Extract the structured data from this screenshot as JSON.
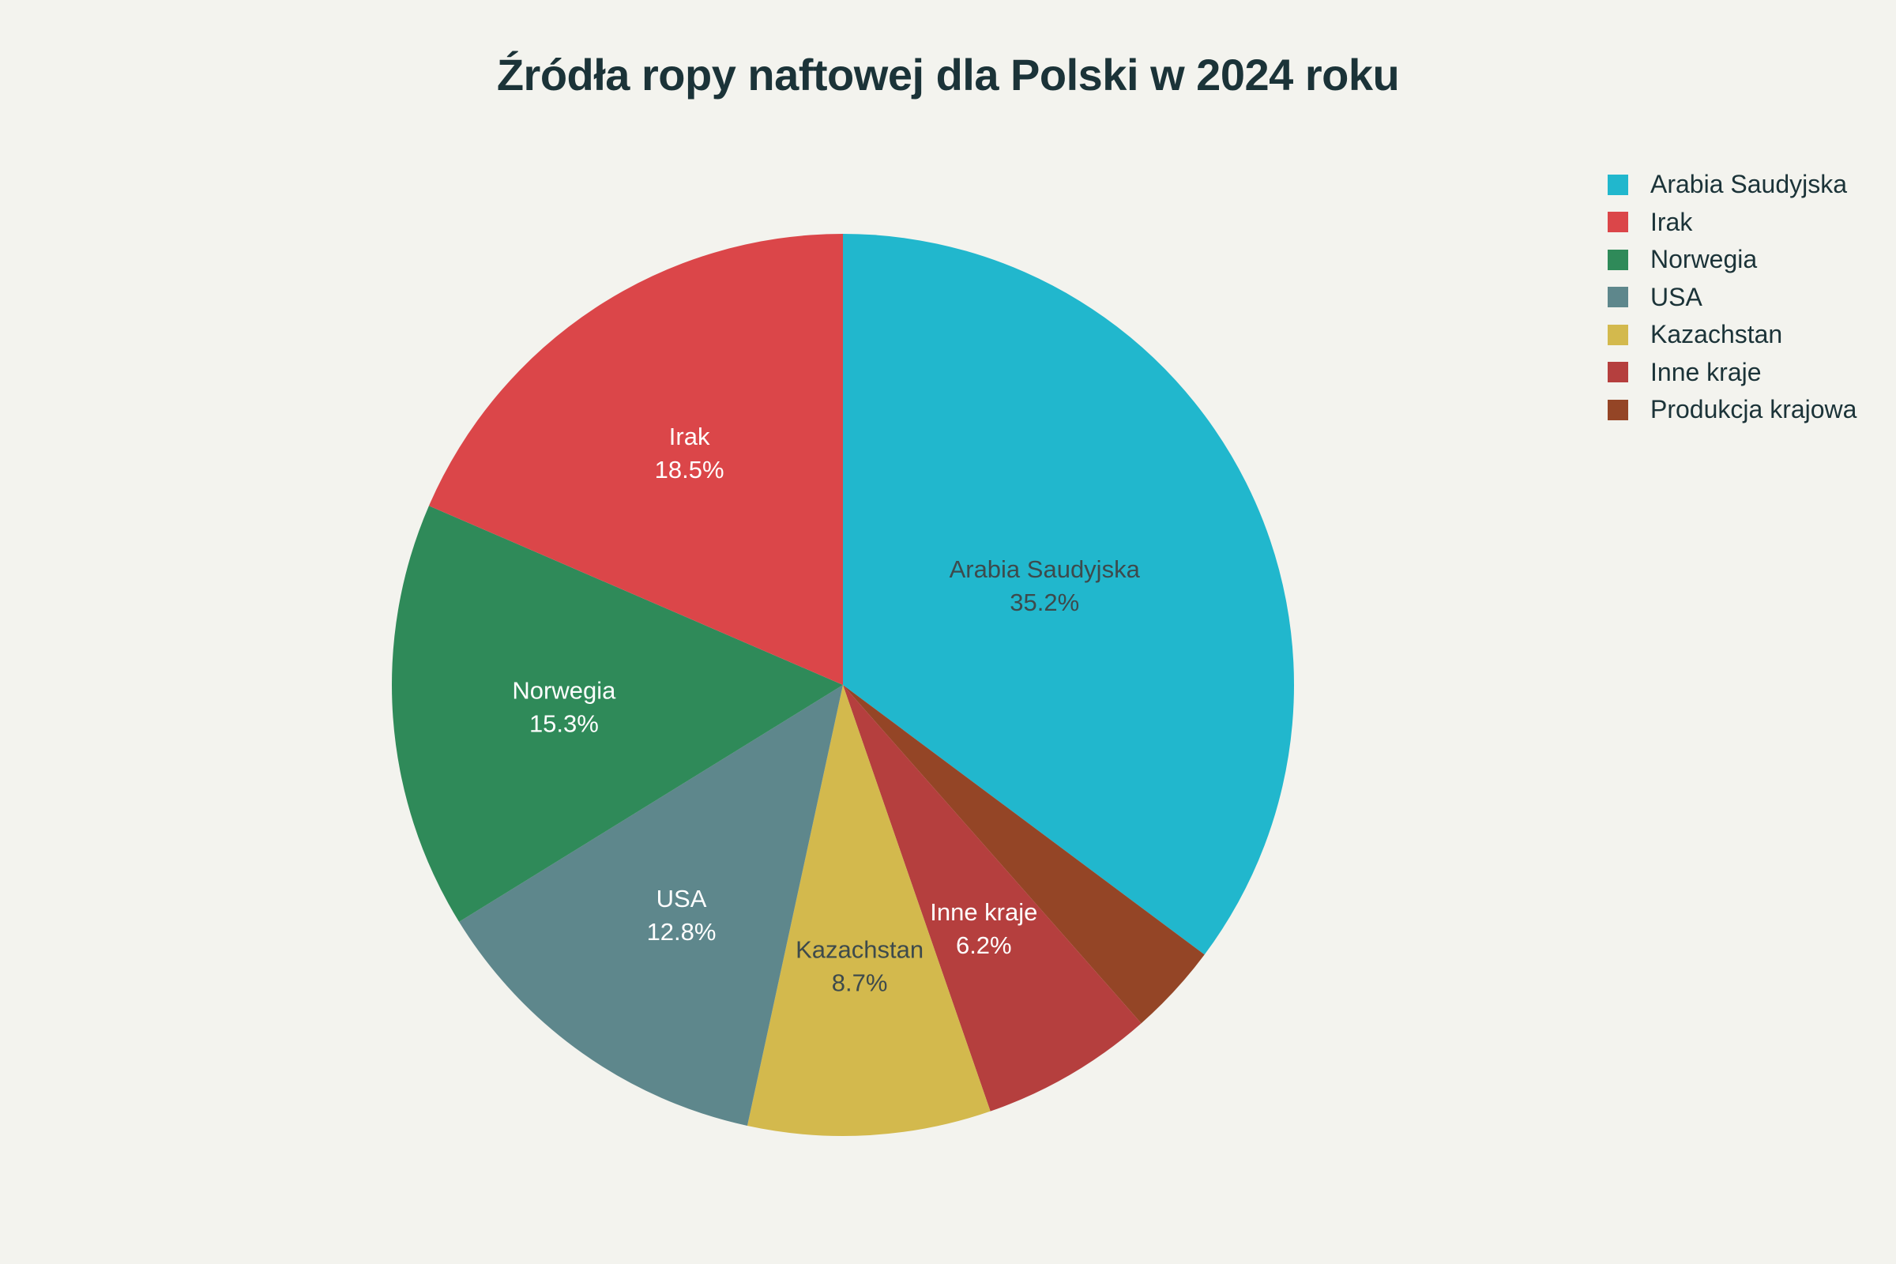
{
  "chart_data": {
    "type": "pie",
    "title": "Źródła ropy naftowej dla Polski w 2024 roku",
    "legend_position": "top-right",
    "slices": [
      {
        "label": "Arabia Saudyjska",
        "value": 35.2,
        "value_text": "35.2%",
        "color": "#21b7cd",
        "label_color": "#3d4a4c"
      },
      {
        "label": "Produkcja krajowa",
        "value": 3.3,
        "value_text": "",
        "color": "#944526",
        "label_color": "#ffffff"
      },
      {
        "label": "Inne kraje",
        "value": 6.2,
        "value_text": "6.2%",
        "color": "#b53f3e",
        "label_color": "#ffffff"
      },
      {
        "label": "Kazachstan",
        "value": 8.7,
        "value_text": "8.7%",
        "color": "#d3b94d",
        "label_color": "#3d4a4c"
      },
      {
        "label": "USA",
        "value": 12.8,
        "value_text": "12.8%",
        "color": "#5e878c",
        "label_color": "#ffffff"
      },
      {
        "label": "Norwegia",
        "value": 15.3,
        "value_text": "15.3%",
        "color": "#2f8a59",
        "label_color": "#ffffff"
      },
      {
        "label": "Irak",
        "value": 18.5,
        "value_text": "18.5%",
        "color": "#db4649",
        "label_color": "#ffffff"
      }
    ],
    "legend": [
      {
        "label": "Arabia Saudyjska",
        "color": "#21b7cd"
      },
      {
        "label": "Irak",
        "color": "#db4649"
      },
      {
        "label": "Norwegia",
        "color": "#2f8a59"
      },
      {
        "label": "USA",
        "color": "#5e878c"
      },
      {
        "label": "Kazachstan",
        "color": "#d3b94d"
      },
      {
        "label": "Inne kraje",
        "color": "#b53f3e"
      },
      {
        "label": "Produkcja krajowa",
        "color": "#944526"
      }
    ]
  }
}
